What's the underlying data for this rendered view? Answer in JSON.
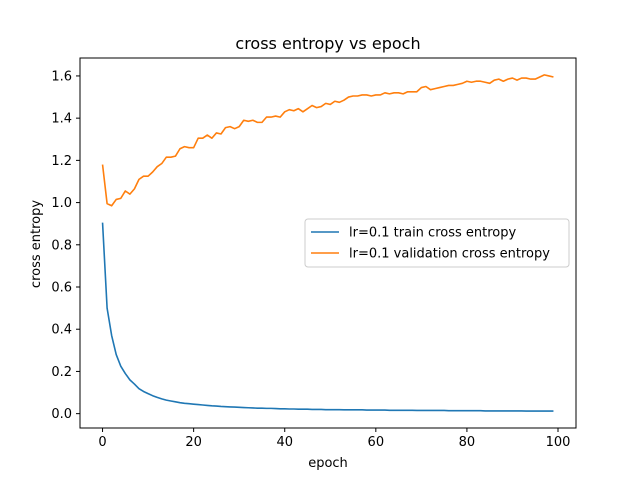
{
  "chart_data": {
    "type": "line",
    "title": "cross entropy vs epoch",
    "xlabel": "epoch",
    "ylabel": "cross entropy",
    "xlim": [
      -4.95,
      103.95
    ],
    "ylim": [
      -0.068,
      1.685
    ],
    "xticks": [
      0,
      20,
      40,
      60,
      80,
      100
    ],
    "xtick_labels": [
      "0",
      "20",
      "40",
      "60",
      "80",
      "100"
    ],
    "yticks": [
      0.0,
      0.2,
      0.4,
      0.6,
      0.8,
      1.0,
      1.2,
      1.4,
      1.6
    ],
    "ytick_labels": [
      "0.0",
      "0.2",
      "0.4",
      "0.6",
      "0.8",
      "1.0",
      "1.2",
      "1.4",
      "1.6"
    ],
    "grid": false,
    "legend_position": "center-right",
    "series": [
      {
        "name": "lr=0.1 train cross entropy",
        "color": "#1f77b4",
        "x": [
          0,
          1,
          2,
          3,
          4,
          5,
          6,
          7,
          8,
          9,
          10,
          11,
          12,
          13,
          14,
          15,
          16,
          17,
          18,
          19,
          20,
          21,
          22,
          23,
          24,
          25,
          26,
          27,
          28,
          29,
          30,
          31,
          32,
          33,
          34,
          35,
          36,
          37,
          38,
          39,
          40,
          41,
          42,
          43,
          44,
          45,
          46,
          47,
          48,
          49,
          50,
          51,
          52,
          53,
          54,
          55,
          56,
          57,
          58,
          59,
          60,
          61,
          62,
          63,
          64,
          65,
          66,
          67,
          68,
          69,
          70,
          71,
          72,
          73,
          74,
          75,
          76,
          77,
          78,
          79,
          80,
          81,
          82,
          83,
          84,
          85,
          86,
          87,
          88,
          89,
          90,
          91,
          92,
          93,
          94,
          95,
          96,
          97,
          98,
          99
        ],
        "y": [
          0.905,
          0.5,
          0.37,
          0.28,
          0.225,
          0.19,
          0.16,
          0.14,
          0.118,
          0.105,
          0.095,
          0.085,
          0.077,
          0.07,
          0.064,
          0.06,
          0.056,
          0.052,
          0.049,
          0.047,
          0.045,
          0.043,
          0.041,
          0.039,
          0.037,
          0.036,
          0.034,
          0.033,
          0.032,
          0.031,
          0.03,
          0.029,
          0.028,
          0.027,
          0.026,
          0.026,
          0.025,
          0.025,
          0.024,
          0.023,
          0.023,
          0.022,
          0.022,
          0.021,
          0.021,
          0.021,
          0.02,
          0.02,
          0.02,
          0.019,
          0.019,
          0.019,
          0.019,
          0.018,
          0.018,
          0.018,
          0.018,
          0.018,
          0.017,
          0.017,
          0.017,
          0.017,
          0.017,
          0.016,
          0.016,
          0.016,
          0.016,
          0.016,
          0.016,
          0.015,
          0.015,
          0.015,
          0.015,
          0.015,
          0.015,
          0.015,
          0.014,
          0.014,
          0.014,
          0.014,
          0.014,
          0.014,
          0.014,
          0.014,
          0.013,
          0.013,
          0.013,
          0.013,
          0.013,
          0.013,
          0.013,
          0.013,
          0.013,
          0.012,
          0.012,
          0.012,
          0.012,
          0.012,
          0.012,
          0.012
        ]
      },
      {
        "name": "lr=0.1 validation cross entropy",
        "color": "#ff7f0e",
        "x": [
          0,
          1,
          2,
          3,
          4,
          5,
          6,
          7,
          8,
          9,
          10,
          11,
          12,
          13,
          14,
          15,
          16,
          17,
          18,
          19,
          20,
          21,
          22,
          23,
          24,
          25,
          26,
          27,
          28,
          29,
          30,
          31,
          32,
          33,
          34,
          35,
          36,
          37,
          38,
          39,
          40,
          41,
          42,
          43,
          44,
          45,
          46,
          47,
          48,
          49,
          50,
          51,
          52,
          53,
          54,
          55,
          56,
          57,
          58,
          59,
          60,
          61,
          62,
          63,
          64,
          65,
          66,
          67,
          68,
          69,
          70,
          71,
          72,
          73,
          74,
          75,
          76,
          77,
          78,
          79,
          80,
          81,
          82,
          83,
          84,
          85,
          86,
          87,
          88,
          89,
          90,
          91,
          92,
          93,
          94,
          95,
          96,
          97,
          98,
          99
        ],
        "y": [
          1.18,
          0.995,
          0.985,
          1.015,
          1.02,
          1.055,
          1.04,
          1.065,
          1.11,
          1.125,
          1.125,
          1.145,
          1.17,
          1.185,
          1.215,
          1.215,
          1.22,
          1.255,
          1.265,
          1.26,
          1.26,
          1.305,
          1.305,
          1.32,
          1.305,
          1.33,
          1.325,
          1.355,
          1.36,
          1.35,
          1.36,
          1.39,
          1.385,
          1.39,
          1.38,
          1.38,
          1.405,
          1.405,
          1.41,
          1.405,
          1.43,
          1.44,
          1.435,
          1.445,
          1.43,
          1.445,
          1.46,
          1.45,
          1.455,
          1.47,
          1.465,
          1.48,
          1.475,
          1.485,
          1.5,
          1.505,
          1.505,
          1.51,
          1.51,
          1.505,
          1.51,
          1.51,
          1.52,
          1.515,
          1.52,
          1.52,
          1.515,
          1.525,
          1.525,
          1.525,
          1.545,
          1.55,
          1.535,
          1.54,
          1.545,
          1.55,
          1.555,
          1.555,
          1.56,
          1.565,
          1.575,
          1.57,
          1.575,
          1.575,
          1.57,
          1.565,
          1.58,
          1.585,
          1.575,
          1.585,
          1.59,
          1.58,
          1.59,
          1.59,
          1.585,
          1.585,
          1.595,
          1.605,
          1.6,
          1.595
        ]
      }
    ]
  }
}
